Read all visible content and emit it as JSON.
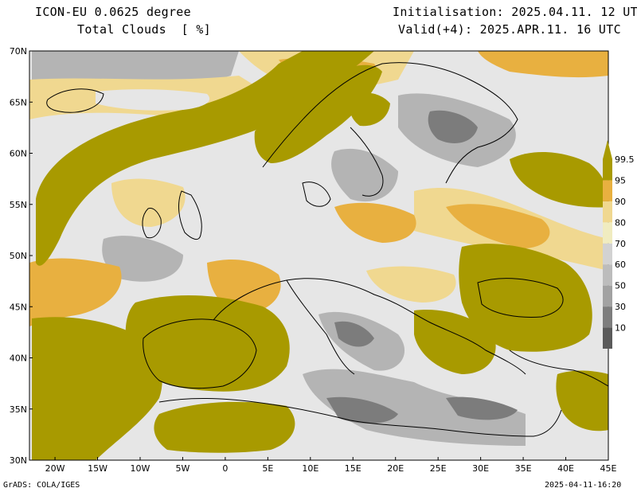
{
  "header": {
    "model": "ICON-EU 0.0625 degree",
    "field": "Total Clouds  [ %]",
    "init": "Initialisation: 2025.04.11. 12 UTC",
    "valid": "Valid(+4): 2025.APR.11. 16 UTC"
  },
  "map": {
    "lon_range": [
      -23,
      45
    ],
    "lat_range": [
      30,
      70
    ],
    "lon_ticks": [
      {
        "value": -20,
        "label": "20W"
      },
      {
        "value": -15,
        "label": "15W"
      },
      {
        "value": -10,
        "label": "10W"
      },
      {
        "value": -5,
        "label": "5W"
      },
      {
        "value": 0,
        "label": "0"
      },
      {
        "value": 5,
        "label": "5E"
      },
      {
        "value": 10,
        "label": "10E"
      },
      {
        "value": 15,
        "label": "15E"
      },
      {
        "value": 20,
        "label": "20E"
      },
      {
        "value": 25,
        "label": "25E"
      },
      {
        "value": 30,
        "label": "30E"
      },
      {
        "value": 35,
        "label": "35E"
      },
      {
        "value": 40,
        "label": "40E"
      },
      {
        "value": 45,
        "label": "45E"
      }
    ],
    "lat_ticks": [
      {
        "value": 30,
        "label": "30N"
      },
      {
        "value": 35,
        "label": "35N"
      },
      {
        "value": 40,
        "label": "40N"
      },
      {
        "value": 45,
        "label": "45N"
      },
      {
        "value": 50,
        "label": "50N"
      },
      {
        "value": 55,
        "label": "55N"
      },
      {
        "value": 60,
        "label": "60N"
      },
      {
        "value": 65,
        "label": "65N"
      },
      {
        "value": 70,
        "label": "70N"
      }
    ],
    "colors": {
      "low": "#e6e6e6",
      "mid_gray": "#a8a8a8",
      "light_tan": "#f0d890",
      "orange": "#e8b040",
      "olive": "#a89a00",
      "coast": "#000000"
    }
  },
  "legend": {
    "levels": [
      {
        "label": "10",
        "color": "#5a5a5a"
      },
      {
        "label": "30",
        "color": "#7d7d7d"
      },
      {
        "label": "50",
        "color": "#a2a2a2"
      },
      {
        "label": "60",
        "color": "#bcbcbc"
      },
      {
        "label": "70",
        "color": "#d2d2d2"
      },
      {
        "label": "80",
        "color": "#f0ecc0"
      },
      {
        "label": "90",
        "color": "#f0d890"
      },
      {
        "label": "95",
        "color": "#e8b040"
      },
      {
        "label": "99.5",
        "color": "#a89a00"
      }
    ]
  },
  "footer": {
    "left": "GrADS: COLA/IGES",
    "right": "2025-04-11-16:20"
  }
}
